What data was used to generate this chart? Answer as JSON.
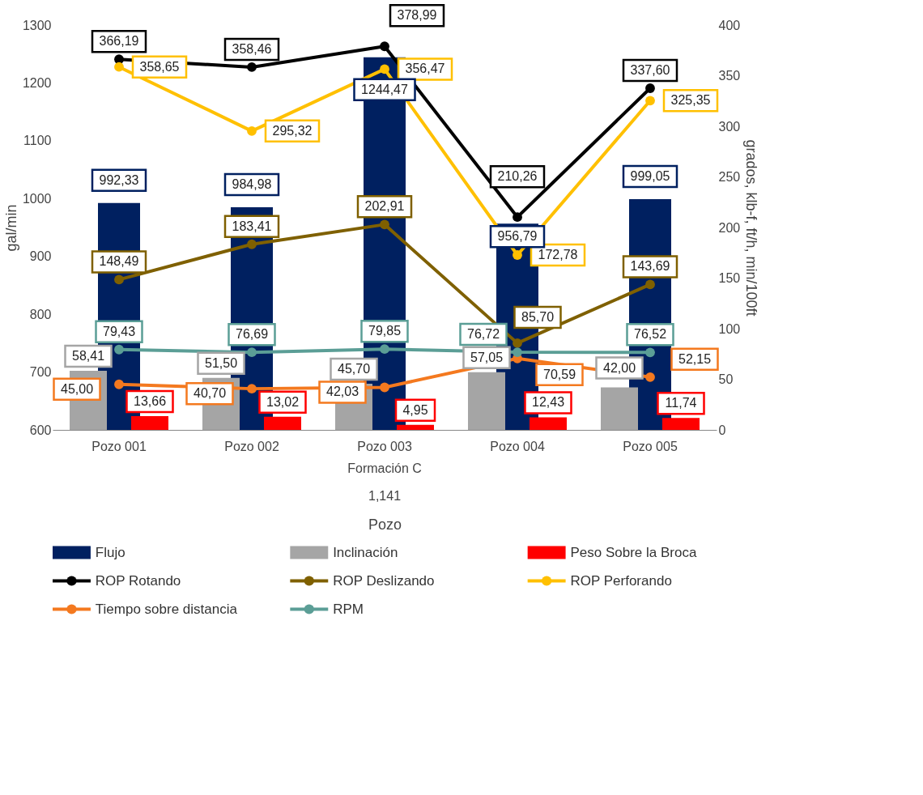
{
  "chart_data": {
    "type": "bar",
    "categories": [
      "Pozo 001",
      "Pozo 002",
      "Pozo 003",
      "Pozo 004",
      "Pozo 005"
    ],
    "xlabel": "Pozo",
    "ylabel": "gal/min",
    "y2label": "grados, klb-f, ft/h, min/100ft",
    "ylim": [
      600,
      1300
    ],
    "yticks": [
      600,
      700,
      800,
      900,
      1000,
      1100,
      1200,
      1300
    ],
    "y2lim": [
      0,
      400
    ],
    "y2ticks": [
      0,
      50,
      100,
      150,
      200,
      250,
      300,
      350,
      400
    ],
    "grid": false,
    "legend": "bottom",
    "marker": "circle",
    "line_style": "solid",
    "annotations": [
      "Formación C",
      "1,141"
    ],
    "series": [
      {
        "name": "Flujo",
        "type": "bar",
        "color": "#002060",
        "values": [
          992.33,
          984.98,
          1244.47,
          956.79,
          999.05
        ],
        "value_labels": [
          "992,33",
          "984,98",
          "1244,47",
          "956,79",
          "999,05"
        ]
      },
      {
        "name": "Inclinación",
        "type": "bar",
        "axis": "y2",
        "color": "#a5a5a5",
        "values": [
          58.41,
          51.5,
          45.7,
          57.05,
          42.0
        ],
        "value_labels": [
          "58,41",
          "51,50",
          "45,70",
          "57,05",
          "42,00"
        ]
      },
      {
        "name": "Peso Sobre la Broca",
        "type": "bar",
        "axis": "y2",
        "color": "#ff0000",
        "values": [
          13.66,
          13.02,
          4.95,
          12.43,
          11.74
        ],
        "value_labels": [
          "13,66",
          "13,02",
          "4,95",
          "12,43",
          "11,74"
        ]
      },
      {
        "name": "ROP Rotando",
        "type": "line",
        "axis": "y2",
        "color": "#000000",
        "values": [
          366.19,
          358.46,
          378.99,
          210.26,
          337.6
        ],
        "value_labels": [
          "366,19",
          "358,46",
          "378,99",
          "210,26",
          "337,60"
        ]
      },
      {
        "name": "ROP Deslizando",
        "type": "line",
        "axis": "y2",
        "color": "#7f6000",
        "values": [
          148.49,
          183.41,
          202.91,
          85.7,
          143.69
        ],
        "value_labels": [
          "148,49",
          "183,41",
          "202,91",
          "85,70",
          "143,69"
        ]
      },
      {
        "name": "ROP Perforando",
        "type": "line",
        "axis": "y2",
        "color": "#ffc000",
        "values": [
          358.65,
          295.32,
          356.47,
          172.78,
          325.35
        ],
        "value_labels": [
          "358,65",
          "295,32",
          "356,47",
          "172,78",
          "325,35"
        ]
      },
      {
        "name": "Tiempo sobre distancia",
        "type": "line",
        "axis": "y2",
        "color": "#f4791f",
        "values": [
          45.0,
          40.7,
          42.03,
          70.59,
          52.15
        ],
        "value_labels": [
          "45,00",
          "40,70",
          "42,03",
          "70,59",
          "52,15"
        ]
      },
      {
        "name": "RPM",
        "type": "line",
        "axis": "y2",
        "color": "#5b9e96",
        "values": [
          79.43,
          76.69,
          79.85,
          76.72,
          76.52
        ],
        "value_labels": [
          "79,43",
          "76,69",
          "79,85",
          "76,72",
          "76,52"
        ]
      }
    ]
  }
}
